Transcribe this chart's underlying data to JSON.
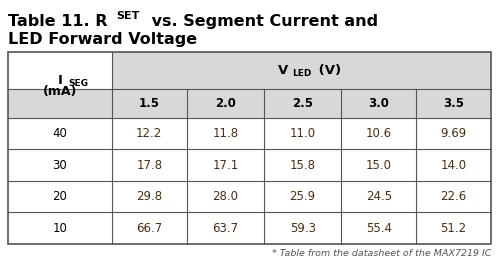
{
  "vled_values": [
    "1.5",
    "2.0",
    "2.5",
    "3.0",
    "3.5"
  ],
  "iseg_values": [
    "40",
    "30",
    "20",
    "10"
  ],
  "table_data": [
    [
      "12.2",
      "11.8",
      "11.0",
      "10.6",
      "9.69"
    ],
    [
      "17.8",
      "17.1",
      "15.8",
      "15.0",
      "14.0"
    ],
    [
      "29.8",
      "28.0",
      "25.9",
      "24.5",
      "22.6"
    ],
    [
      "66.7",
      "63.7",
      "59.3",
      "55.4",
      "51.2"
    ]
  ],
  "footnote": "* Table from the datasheet of the MAX7219 IC",
  "bg_color": "#ffffff",
  "header_bg": "#d8d8d8",
  "border_color": "#555555",
  "text_color": "#000000",
  "data_text_color": "#4a3010",
  "title_color": "#000000",
  "footnote_color": "#555555",
  "title_fontsize": 11.5,
  "header_fontsize": 8.5,
  "data_fontsize": 8.5,
  "footnote_fontsize": 6.8
}
